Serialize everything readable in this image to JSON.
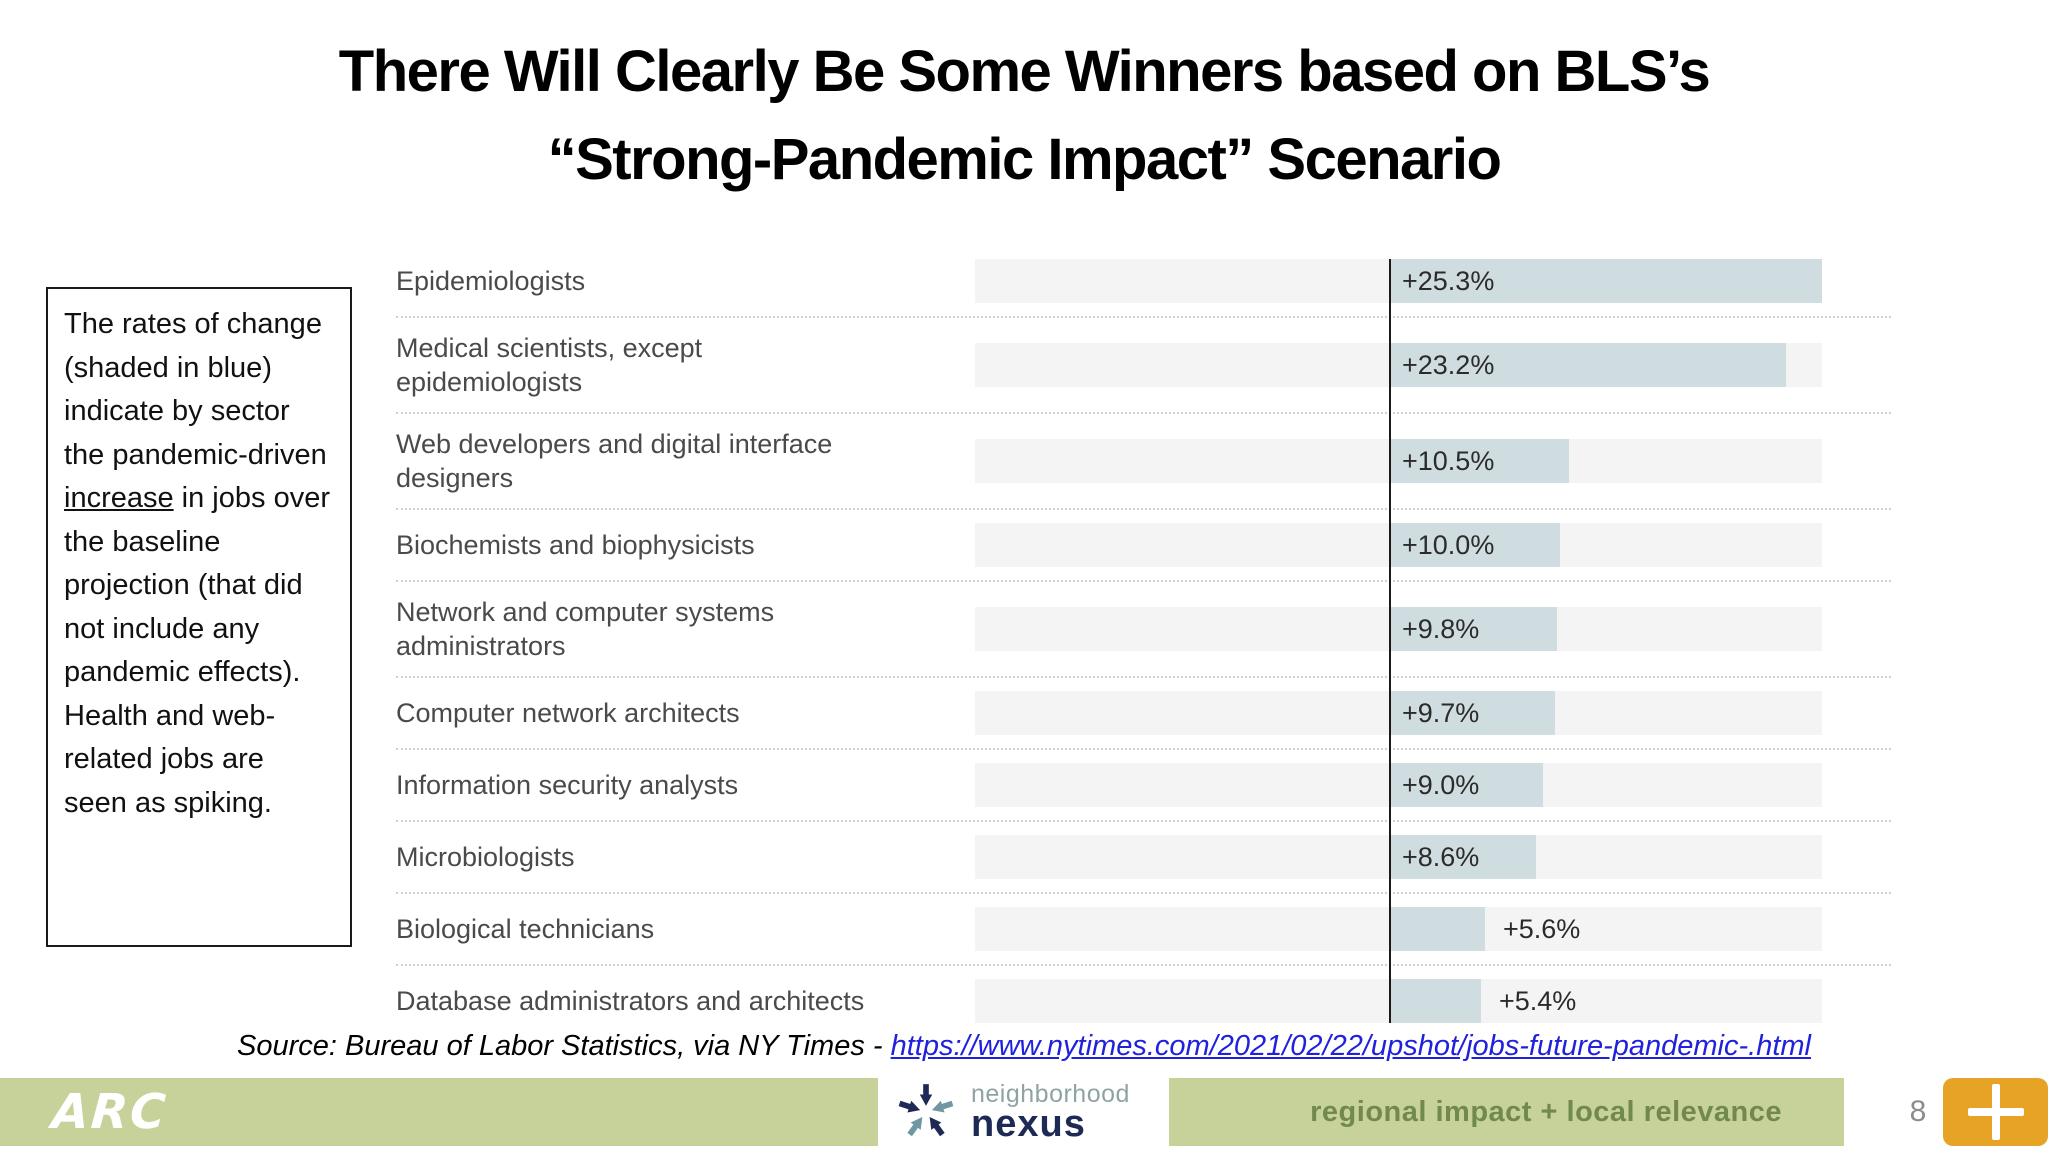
{
  "title": {
    "line1": "There Will Clearly Be Some Winners based on BLS’s",
    "line2": "“Strong-Pandemic Impact” Scenario"
  },
  "note": {
    "text_before": "The rates of change (shaded in blue) indicate by sector the pandemic-driven ",
    "underlined": "increase",
    "text_after": " in jobs over the baseline projection (that did not include any pandemic effects). Health and web-related jobs are seen as spiking."
  },
  "chart_data": {
    "type": "bar",
    "orientation": "horizontal",
    "title": "",
    "xlabel": "",
    "ylabel": "",
    "categories": [
      "Epidemiologists",
      "Medical scientists, except epidemiologists",
      "Web developers and digital interface designers",
      "Biochemists and biophysicists",
      "Network and computer systems administrators",
      "Computer network architects",
      "Information security analysts",
      "Microbiologists",
      "Biological technicians",
      "Database administrators and architects"
    ],
    "values": [
      25.3,
      23.2,
      10.5,
      10.0,
      9.8,
      9.7,
      9.0,
      8.6,
      5.6,
      5.4
    ],
    "value_labels": [
      "+25.3%",
      "+23.2%",
      "+10.5%",
      "+10.0%",
      "+9.8%",
      "+9.7%",
      "+9.0%",
      "+8.6%",
      "+5.6%",
      "+5.4%"
    ],
    "unit": "percent",
    "xlim": [
      -24.2,
      25.3
    ],
    "baseline_at_zero": true,
    "grid": false,
    "legend": false,
    "bar_color": "#cfdce0",
    "track_color": "#f4f4f4",
    "baseline_color": "#1a1a1a"
  },
  "source": {
    "prefix": "Source: Bureau of Labor Statistics, via NY Times - ",
    "link": "https://www.nytimes.com/2021/02/22/upshot/jobs-future-pandemic-.html"
  },
  "footer": {
    "arc_logo": "ARC",
    "nexus_line1": "neighborhood",
    "nexus_line2": "nexus",
    "tagline": "regional impact + local relevance",
    "page_number": "8",
    "colors": {
      "footer_green": "#c6d29a",
      "tagline_text": "#71894f",
      "plus_button_orange": "#e7a325",
      "nexus_navy": "#1d2a56",
      "nexus_teal": "#6f98a3"
    }
  }
}
